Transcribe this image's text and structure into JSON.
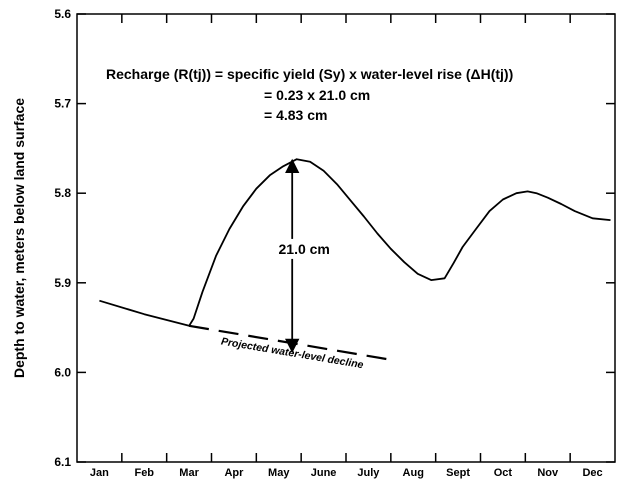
{
  "chart_data": {
    "type": "line",
    "title": "",
    "xlabel": "",
    "ylabel": "Depth to water, meters below land surface",
    "x_categories": [
      "Jan",
      "Feb",
      "Mar",
      "Apr",
      "May",
      "June",
      "July",
      "Aug",
      "Sept",
      "Oct",
      "Nov",
      "Dec"
    ],
    "ylim": [
      5.6,
      6.1
    ],
    "y_inverted": true,
    "y_ticks": [
      "5.6",
      "5.7",
      "5.8",
      "5.9",
      "6.0",
      "6.1"
    ],
    "grid": false,
    "series": [
      {
        "style": "solid",
        "x": [
          0.0,
          1.0,
          2.0,
          2.1,
          2.3,
          2.6,
          2.9,
          3.2,
          3.5,
          3.8,
          4.1,
          4.4,
          4.7,
          5.0,
          5.3,
          5.6,
          5.9,
          6.2,
          6.5,
          6.8,
          7.1,
          7.4,
          7.7,
          7.9,
          8.1,
          8.4,
          8.7,
          9.0,
          9.3,
          9.55,
          9.75,
          10.0,
          10.3,
          10.6,
          11.0,
          11.4
        ],
        "y": [
          5.92,
          5.935,
          5.948,
          5.94,
          5.91,
          5.87,
          5.84,
          5.815,
          5.795,
          5.78,
          5.77,
          5.762,
          5.765,
          5.775,
          5.79,
          5.808,
          5.826,
          5.845,
          5.862,
          5.877,
          5.89,
          5.897,
          5.895,
          5.878,
          5.86,
          5.84,
          5.82,
          5.807,
          5.8,
          5.798,
          5.8,
          5.805,
          5.812,
          5.82,
          5.828,
          5.83
        ]
      },
      {
        "name": "Projected water-level decline",
        "style": "dashed",
        "x": [
          2.0,
          6.4
        ],
        "y": [
          5.948,
          5.985
        ]
      }
    ],
    "annotations": {
      "equation_line1": "Recharge (R(tj)) = specific yield (Sy) x water-level rise (ΔH(tj))",
      "equation_line2": "= 0.23 x 21.0 cm",
      "equation_line3": "= 4.83 cm",
      "rise_label": "21.0 cm",
      "rise_from": {
        "x": 4.3,
        "y": 5.762
      },
      "rise_to": {
        "x": 4.3,
        "y": 5.978
      }
    }
  }
}
